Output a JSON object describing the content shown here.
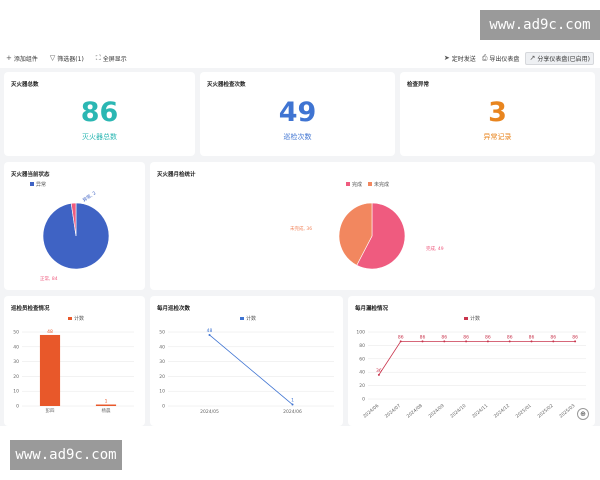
{
  "watermark": {
    "text": "www.ad9c.com"
  },
  "toolbar": {
    "add": "添加组件",
    "filter": "筛选器(1)",
    "fullscreen": "全屏显示",
    "send": "定时发送",
    "export": "导出仪表盘",
    "share": "分享仪表盘(已启用)"
  },
  "stats": [
    {
      "title": "灭火器总数",
      "value": "86",
      "label": "灭火器总数",
      "color": "#2bb7b3"
    },
    {
      "title": "灭火器检查次数",
      "value": "49",
      "label": "巡检次数",
      "color": "#3f74d2"
    },
    {
      "title": "检查异常",
      "value": "3",
      "label": "异常记录",
      "color": "#e8851f"
    }
  ],
  "status_pie": {
    "title": "灭火器当前状态",
    "legend": [
      "异常",
      "正常"
    ],
    "labels": [
      "正常, 84",
      "异常, 2"
    ],
    "colors": [
      "#3f63c4",
      "#ef5b7f"
    ],
    "chart_data": {
      "type": "pie",
      "categories": [
        "正常",
        "异常"
      ],
      "values": [
        84,
        2
      ]
    }
  },
  "month_pie": {
    "title": "灭火器月检统计",
    "legend": [
      "完成",
      "未完成"
    ],
    "labels": [
      "完成, 49",
      "未完成, 36"
    ],
    "colors": [
      "#ef5b7f",
      "#f2875f"
    ],
    "chart_data": {
      "type": "pie",
      "categories": [
        "完成",
        "未完成"
      ],
      "values": [
        49,
        36
      ]
    }
  },
  "inspector_bar": {
    "title": "巡检员检查情况",
    "legend": "计数",
    "color": "#e8582a",
    "chart_data": {
      "type": "bar",
      "categories": [
        "彭四",
        "杨晨"
      ],
      "values": [
        48,
        1
      ],
      "ylim": [
        0,
        50
      ],
      "yticks": [
        0,
        10,
        20,
        30,
        40,
        50
      ]
    }
  },
  "monthly_line": {
    "title": "每月巡检次数",
    "legend": "计数",
    "color": "#3f74d2",
    "chart_data": {
      "type": "line",
      "categories": [
        "2024/05",
        "2024/06"
      ],
      "values": [
        48,
        1
      ],
      "ylim": [
        0,
        50
      ],
      "yticks": [
        0,
        10,
        20,
        30,
        40,
        50
      ]
    }
  },
  "miss_line": {
    "title": "每月漏检情况",
    "legend": "计数",
    "color": "#c9354d",
    "chart_data": {
      "type": "line",
      "categories": [
        "2024/06",
        "2024/07",
        "2024/08",
        "2024/09",
        "2024/10",
        "2024/11",
        "2024/12",
        "2025/01",
        "2025/02",
        "2025/03"
      ],
      "values": [
        36,
        86,
        86,
        86,
        86,
        86,
        86,
        86,
        86,
        86
      ],
      "ylim": [
        0,
        100
      ],
      "yticks": [
        0,
        20,
        40,
        60,
        80,
        100
      ]
    }
  }
}
